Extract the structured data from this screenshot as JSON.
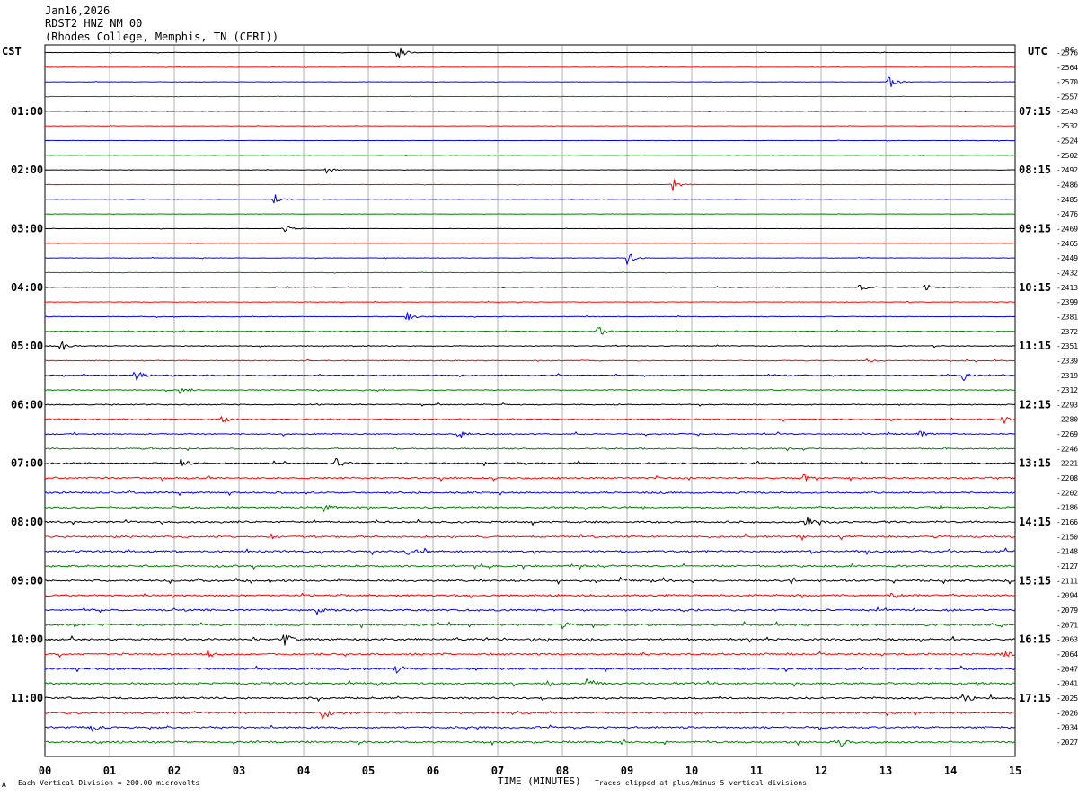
{
  "header": {
    "date": "Jan16,2026",
    "station": "RDST2 HNZ NM 00",
    "location": "(Rhodes College, Memphis, TN (CERI))"
  },
  "labels": {
    "left_timezone": "CST",
    "right_timezone": "UTC",
    "dc_heading": "DC"
  },
  "footer": {
    "scale_note": "Each Vertical Division =  200.00 microvolts",
    "clip_note": "Traces clipped at plus/minus 5 vertical divisions",
    "corner_mark": "A"
  },
  "chart_data": {
    "type": "line",
    "chart_kind": "helicorder",
    "xlabel": "TIME (MINUTES)",
    "xlim": [
      0,
      15
    ],
    "x_ticks": [
      "00",
      "01",
      "02",
      "03",
      "04",
      "05",
      "06",
      "07",
      "08",
      "09",
      "10",
      "11",
      "12",
      "13",
      "14",
      "15"
    ],
    "grid": true,
    "trace_colors": [
      "#000000",
      "#ff0000",
      "#0000ff",
      "#008000"
    ],
    "left_hour_labels": [
      "01:00",
      "02:00",
      "03:00",
      "04:00",
      "05:00",
      "06:00",
      "07:00",
      "08:00",
      "09:00",
      "10:00",
      "11:00"
    ],
    "right_hour_labels": [
      "07:15",
      "08:15",
      "09:15",
      "10:15",
      "11:15",
      "12:15",
      "13:15",
      "14:15",
      "15:15",
      "16:15",
      "17:15"
    ],
    "dc_offsets": [
      "-2576",
      "-2564",
      "-2570",
      "-2557",
      "-2543",
      "-2532",
      "-2524",
      "-2502",
      "-2492",
      "-2486",
      "-2485",
      "-2476",
      "-2469",
      "-2465",
      "-2449",
      "-2432",
      "-2413",
      "-2399",
      "-2381",
      "-2372",
      "-2351",
      "-2339",
      "-2319",
      "-2312",
      "-2293",
      "-2280",
      "-2269",
      "-2246",
      "-2221",
      "-2208",
      "-2202",
      "-2186",
      "-2166",
      "-2150",
      "-2148",
      "-2127",
      "-2111",
      "-2094",
      "-2079",
      "-2071",
      "-2063",
      "-2064",
      "-2047",
      "-2041",
      "-2025",
      "-2026",
      "-2034",
      "-2027"
    ],
    "trace_noise_level": [
      0.15,
      0.15,
      0.15,
      0.15,
      0.15,
      0.15,
      0.15,
      0.15,
      0.15,
      0.15,
      0.15,
      0.15,
      0.15,
      0.15,
      0.2,
      0.2,
      0.25,
      0.25,
      0.3,
      0.35,
      0.4,
      0.4,
      0.45,
      0.45,
      0.5,
      0.55,
      0.6,
      0.6,
      0.7,
      0.8,
      0.8,
      0.85,
      0.9,
      0.9,
      0.9,
      0.9,
      0.9,
      0.9,
      0.9,
      0.9,
      0.9,
      0.9,
      0.9,
      0.9,
      0.9,
      0.9,
      0.9,
      0.9
    ],
    "events": [
      {
        "trace": 0,
        "minute": 5.45,
        "amplitude": 10
      },
      {
        "trace": 2,
        "minute": 13.05,
        "amplitude": 9
      },
      {
        "trace": 8,
        "minute": 4.35,
        "amplitude": 4
      },
      {
        "trace": 9,
        "minute": 9.7,
        "amplitude": 8
      },
      {
        "trace": 10,
        "minute": 3.55,
        "amplitude": 6
      },
      {
        "trace": 12,
        "minute": 3.7,
        "amplitude": 6
      },
      {
        "trace": 14,
        "minute": 9.0,
        "amplitude": 8
      },
      {
        "trace": 16,
        "minute": 12.6,
        "amplitude": 5
      },
      {
        "trace": 16,
        "minute": 13.6,
        "amplitude": 5
      },
      {
        "trace": 18,
        "minute": 5.6,
        "amplitude": 5
      },
      {
        "trace": 19,
        "minute": 8.55,
        "amplitude": 7
      },
      {
        "trace": 20,
        "minute": 0.25,
        "amplitude": 6
      },
      {
        "trace": 21,
        "minute": 12.7,
        "amplitude": 4
      },
      {
        "trace": 22,
        "minute": 1.4,
        "amplitude": 8
      },
      {
        "trace": 22,
        "minute": 14.2,
        "amplitude": 6
      },
      {
        "trace": 23,
        "minute": 2.1,
        "amplitude": 5
      },
      {
        "trace": 25,
        "minute": 2.75,
        "amplitude": 5
      },
      {
        "trace": 25,
        "minute": 14.8,
        "amplitude": 6
      },
      {
        "trace": 26,
        "minute": 6.4,
        "amplitude": 5
      },
      {
        "trace": 26,
        "minute": 13.5,
        "amplitude": 5
      },
      {
        "trace": 28,
        "minute": 2.1,
        "amplitude": 6
      },
      {
        "trace": 28,
        "minute": 4.5,
        "amplitude": 6
      },
      {
        "trace": 29,
        "minute": 11.7,
        "amplitude": 5
      },
      {
        "trace": 31,
        "minute": 4.3,
        "amplitude": 6
      },
      {
        "trace": 32,
        "minute": 11.8,
        "amplitude": 6
      },
      {
        "trace": 34,
        "minute": 5.6,
        "amplitude": 6
      },
      {
        "trace": 37,
        "minute": 13.1,
        "amplitude": 5
      },
      {
        "trace": 36,
        "minute": 8.9,
        "amplitude": 6
      },
      {
        "trace": 38,
        "minute": 4.2,
        "amplitude": 6
      },
      {
        "trace": 39,
        "minute": 8.0,
        "amplitude": 5
      },
      {
        "trace": 40,
        "minute": 3.7,
        "amplitude": 7
      },
      {
        "trace": 41,
        "minute": 2.5,
        "amplitude": 6
      },
      {
        "trace": 41,
        "minute": 14.8,
        "amplitude": 6
      },
      {
        "trace": 42,
        "minute": 5.4,
        "amplitude": 6
      },
      {
        "trace": 43,
        "minute": 8.4,
        "amplitude": 5
      },
      {
        "trace": 44,
        "minute": 14.2,
        "amplitude": 6
      },
      {
        "trace": 45,
        "minute": 4.3,
        "amplitude": 9
      },
      {
        "trace": 46,
        "minute": 0.7,
        "amplitude": 6
      },
      {
        "trace": 47,
        "minute": 12.3,
        "amplitude": 5
      }
    ]
  }
}
